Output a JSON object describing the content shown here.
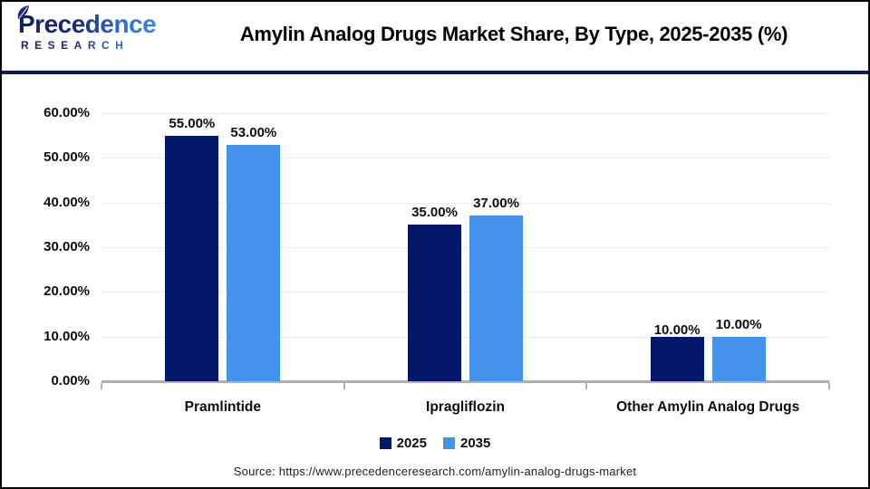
{
  "header": {
    "logo": {
      "line1": "Precedence",
      "line2": "RESEARCH"
    },
    "title": "Amylin Analog Drugs Market Share, By Type, 2025-2035 (%)"
  },
  "chart_data": {
    "type": "bar",
    "title": "Amylin Analog Drugs Market Share, By Type, 2025-2035 (%)",
    "categories": [
      "Pramlintide",
      "Ipragliflozin",
      "Other Amylin Analog Drugs"
    ],
    "series": [
      {
        "name": "2025",
        "color": "#04186B",
        "values": [
          55,
          35,
          10
        ]
      },
      {
        "name": "2035",
        "color": "#4592EB",
        "values": [
          53,
          37,
          10
        ]
      }
    ],
    "data_labels": [
      [
        "55.00%",
        "35.00%",
        "10.00%"
      ],
      [
        "53.00%",
        "37.00%",
        "10.00%"
      ]
    ],
    "y_ticks": [
      {
        "value": 0,
        "label": "0.00%"
      },
      {
        "value": 10,
        "label": "10.00%"
      },
      {
        "value": 20,
        "label": "20.00%"
      },
      {
        "value": 30,
        "label": "30.00%"
      },
      {
        "value": 40,
        "label": "40.00%"
      },
      {
        "value": 50,
        "label": "50.00%"
      },
      {
        "value": 60,
        "label": "60.00%"
      }
    ],
    "ylim": [
      0,
      60
    ],
    "xlabel": "",
    "ylabel": "",
    "grid": true,
    "legend_position": "bottom"
  },
  "footer": {
    "source": "Source: https://www.precedenceresearch.com/amylin-analog-drugs-market"
  },
  "colors": {
    "series_2025": "#04186B",
    "series_2035": "#4592EB",
    "header_divider": "#0E1B52",
    "frame_border": "#000000",
    "gridline": "#ECECEC",
    "axis_line": "#B0B0B0",
    "logo_navy": "#1D2A78",
    "logo_blue": "#3E82E4",
    "title_text": "#000000"
  }
}
